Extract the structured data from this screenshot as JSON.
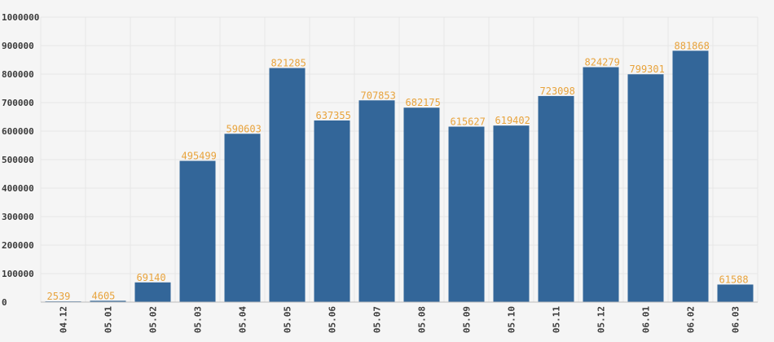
{
  "chart_data": {
    "type": "bar",
    "categories": [
      "04.12",
      "05.01",
      "05.02",
      "05.03",
      "05.04",
      "05.05",
      "05.06",
      "05.07",
      "05.08",
      "05.09",
      "05.10",
      "05.11",
      "05.12",
      "06.01",
      "06.02",
      "06.03"
    ],
    "values": [
      2539,
      4605,
      69140,
      495499,
      590603,
      821285,
      637355,
      707853,
      682175,
      615627,
      619402,
      723098,
      824279,
      799301,
      881868,
      61588
    ],
    "value_labels": [
      "2539",
      "4605",
      "69140",
      "495499",
      "590603",
      "821285",
      "637355",
      "707853",
      "682175",
      "615627",
      "619402",
      "723098",
      "824279",
      "799301",
      "881868",
      "61588"
    ],
    "title": "",
    "xlabel": "",
    "ylabel": "",
    "ylim": [
      0,
      1000000
    ],
    "yticks": [
      0,
      100000,
      200000,
      300000,
      400000,
      500000,
      600000,
      700000,
      800000,
      900000,
      1000000
    ],
    "ytick_labels": [
      "0",
      "100000",
      "200000",
      "300000",
      "400000",
      "500000",
      "600000",
      "700000",
      "800000",
      "900000",
      "1000000"
    ],
    "grid": true,
    "legend": "none",
    "colors": {
      "bar": "#336699",
      "data_label": "#e8a33c",
      "background": "#f5f5f5",
      "grid": "#e6e6e6",
      "tick_text": "#3a3a3a"
    }
  }
}
